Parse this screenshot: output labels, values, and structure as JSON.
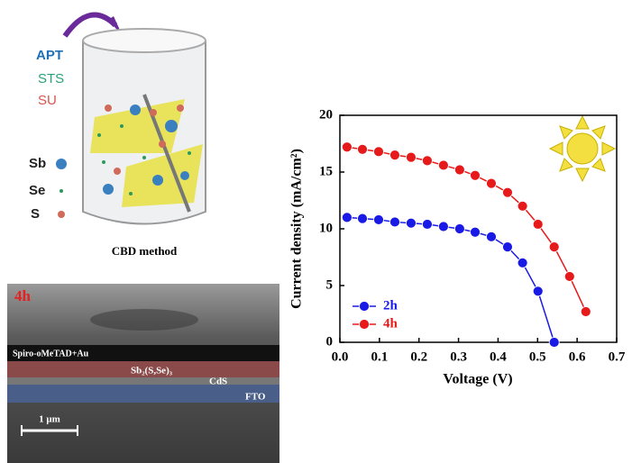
{
  "schematic": {
    "reagents": [
      "APT",
      "STS",
      "SU"
    ],
    "elements": [
      "Sb",
      "Se",
      "S"
    ],
    "caption": "CBD method"
  },
  "sem": {
    "label": "4h",
    "layers": [
      "Spiro-oMeTAD+Au",
      "Sb₂(S,Se)₃",
      "CdS",
      "FTO"
    ],
    "scale_bar": "1 μm"
  },
  "chart_data": {
    "type": "line",
    "x_label": "Voltage (V)",
    "y_label": "Current density (mA/cm²)",
    "x": [
      0.018,
      0.057,
      0.098,
      0.139,
      0.18,
      0.221,
      0.262,
      0.303,
      0.342,
      0.383,
      0.424,
      0.462,
      0.501,
      0.542,
      0.581,
      0.622
    ],
    "series": [
      {
        "name": "2h",
        "color": "#1a1ae6",
        "values": [
          11.0,
          10.9,
          10.8,
          10.6,
          10.5,
          10.4,
          10.2,
          10.0,
          9.7,
          9.3,
          8.4,
          7.0,
          4.5,
          0.0,
          null,
          null
        ]
      },
      {
        "name": "4h",
        "color": "#e61a1a",
        "values": [
          17.2,
          17.0,
          16.8,
          16.5,
          16.3,
          16.0,
          15.6,
          15.2,
          14.7,
          14.0,
          13.2,
          12.0,
          10.4,
          8.4,
          5.8,
          2.7
        ]
      }
    ],
    "xlim": [
      0,
      0.7
    ],
    "xticks": [
      {
        "value": 0,
        "label": "0.0"
      },
      0.1,
      0.2,
      0.3,
      0.4,
      0.5,
      0.6,
      0.7
    ],
    "ylim": [
      0,
      20
    ],
    "yticks": [
      0,
      5,
      10,
      15,
      20
    ],
    "legend": "lower-left"
  }
}
